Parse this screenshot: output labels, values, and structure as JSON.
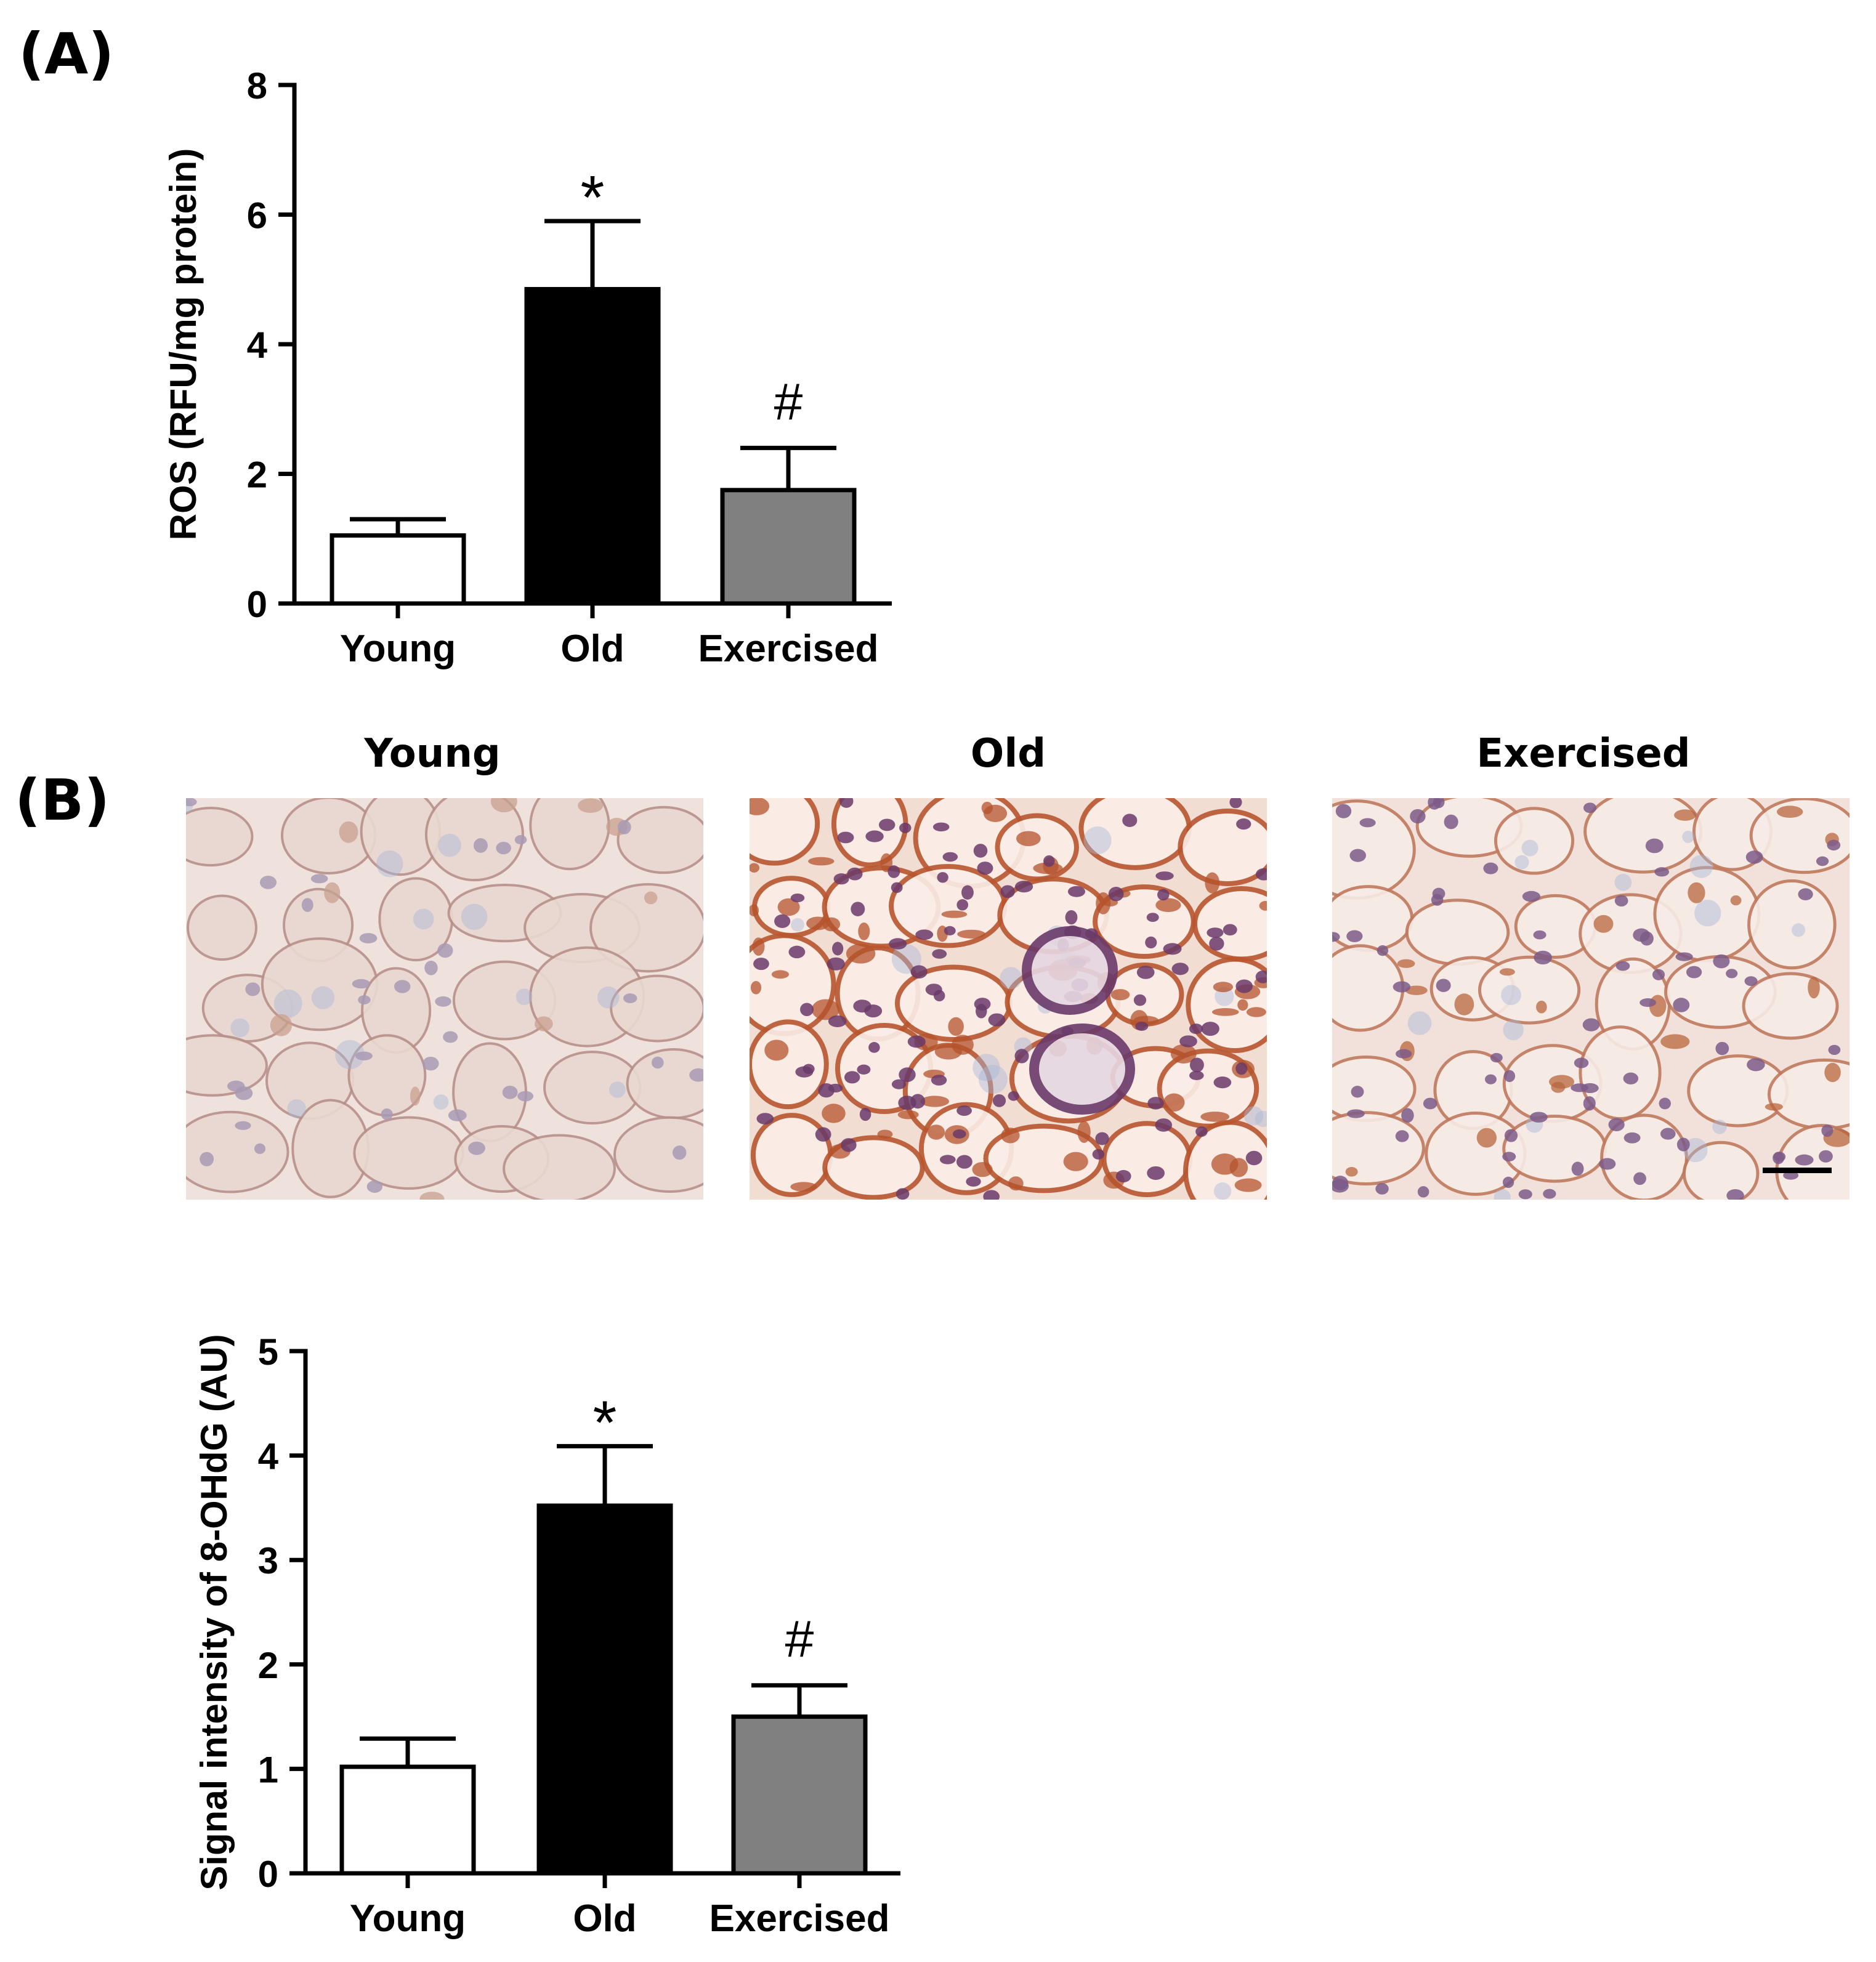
{
  "panel_a": {
    "label": "(A)"
  },
  "panel_b": {
    "label": "(B)",
    "images": [
      {
        "title": "Young",
        "stain_level": "weak"
      },
      {
        "title": "Old",
        "stain_level": "strong"
      },
      {
        "title": "Exercised",
        "stain_level": "moderate"
      }
    ]
  },
  "colors": {
    "young": "#ffffff",
    "old": "#000000",
    "exercised": "#808080",
    "axis": "#000000"
  },
  "chart_data": [
    {
      "type": "bar",
      "title": "",
      "categories": [
        "Young",
        "Old",
        "Exercised"
      ],
      "values": [
        1.05,
        4.85,
        1.75
      ],
      "errors": [
        0.25,
        1.05,
        0.65
      ],
      "annotations": [
        "",
        "*",
        "#"
      ],
      "xlabel": "",
      "ylabel": "ROS (RFU/mg protein)",
      "ylim": [
        0,
        8
      ],
      "yticks": [
        0,
        2,
        4,
        6,
        8
      ],
      "grid": false
    },
    {
      "type": "bar",
      "title": "",
      "categories": [
        "Young",
        "Old",
        "Exercised"
      ],
      "values": [
        1.02,
        3.52,
        1.5
      ],
      "errors": [
        0.27,
        0.57,
        0.3
      ],
      "annotations": [
        "",
        "*",
        "#"
      ],
      "xlabel": "",
      "ylabel": "Signal intensity of 8-OHdG (AU)",
      "ylim": [
        0,
        5
      ],
      "yticks": [
        0,
        1,
        2,
        3,
        4,
        5
      ],
      "grid": false
    }
  ]
}
